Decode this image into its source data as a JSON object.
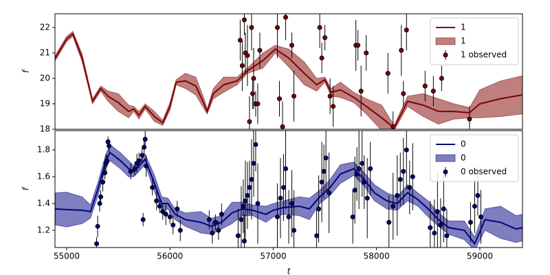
{
  "chart_data": [
    {
      "type": "line",
      "ylabel": "f",
      "xlim": [
        54887,
        59413
      ],
      "ylim": [
        18,
        22.54
      ],
      "yticks": [
        18,
        19,
        20,
        21,
        22
      ],
      "legend": "upper right",
      "series": [
        {
          "name": "1",
          "type": "line",
          "color": "#800000",
          "x": [
            54890,
            55000,
            55060,
            55150,
            55250,
            55330,
            55400,
            55500,
            55600,
            55650,
            55700,
            55760,
            55850,
            55930,
            56000,
            56060,
            56150,
            56250,
            56330,
            56360,
            56420,
            56520,
            56650,
            56750,
            56900,
            57020,
            57150,
            57300,
            57420,
            57500,
            57560,
            57650,
            57780,
            57900,
            58050,
            58170,
            58300,
            58450,
            58600,
            58750,
            58900,
            59000,
            59200,
            59413
          ],
          "values": [
            20.8,
            21.55,
            21.75,
            20.8,
            19.1,
            19.6,
            19.3,
            19.05,
            18.7,
            18.8,
            18.55,
            18.9,
            18.5,
            18.25,
            18.9,
            19.85,
            19.9,
            19.7,
            19.0,
            18.7,
            19.4,
            19.75,
            19.9,
            20.3,
            20.7,
            21.15,
            20.8,
            20.2,
            19.75,
            19.95,
            19.45,
            19.55,
            19.25,
            18.9,
            18.45,
            18.05,
            19.1,
            18.95,
            18.7,
            18.7,
            18.65,
            19.0,
            19.2,
            19.35
          ]
        },
        {
          "name": "1",
          "type": "band",
          "color": "#800000",
          "x": [
            54890,
            55000,
            55060,
            55150,
            55250,
            55330,
            55400,
            55500,
            55600,
            55650,
            55700,
            55760,
            55850,
            55930,
            56000,
            56060,
            56150,
            56250,
            56330,
            56360,
            56420,
            56520,
            56650,
            56750,
            56900,
            57020,
            57150,
            57300,
            57420,
            57500,
            57560,
            57650,
            57780,
            57900,
            58050,
            58170,
            58300,
            58450,
            58600,
            58750,
            58900,
            59000,
            59200,
            59413
          ],
          "lower": [
            20.7,
            21.45,
            21.65,
            20.65,
            19.0,
            19.5,
            19.1,
            18.7,
            18.45,
            18.7,
            18.4,
            18.8,
            18.3,
            18.15,
            18.75,
            19.75,
            19.6,
            19.35,
            18.8,
            18.6,
            19.2,
            19.45,
            19.75,
            20.2,
            20.4,
            21.0,
            20.45,
            19.75,
            19.5,
            19.85,
            19.3,
            19.25,
            19.05,
            18.6,
            17.95,
            17.95,
            18.9,
            18.5,
            18.2,
            18.4,
            18.45,
            18.45,
            18.5,
            18.6
          ],
          "upper": [
            20.9,
            21.65,
            21.85,
            20.95,
            19.2,
            19.7,
            19.5,
            19.4,
            18.95,
            18.9,
            18.7,
            19.0,
            18.7,
            18.35,
            19.05,
            19.95,
            20.2,
            20.05,
            19.2,
            18.8,
            19.6,
            20.05,
            20.05,
            20.4,
            21.0,
            21.3,
            21.15,
            20.65,
            20.0,
            20.05,
            19.6,
            19.85,
            19.45,
            19.2,
            18.95,
            18.15,
            19.3,
            19.4,
            19.2,
            19.0,
            18.85,
            19.55,
            19.9,
            20.1
          ]
        },
        {
          "name": "1 observed",
          "type": "scatter",
          "color": "#800000",
          "x": [
            56680,
            56700,
            56720,
            56730,
            56750,
            56770,
            56790,
            56800,
            56810,
            56830,
            56850,
            56870,
            57040,
            57060,
            57090,
            57120,
            57180,
            57200,
            57450,
            57470,
            57500,
            57550,
            57580,
            57800,
            57820,
            57850,
            57900,
            58110,
            58160,
            58240,
            58260,
            58290,
            58470,
            58550,
            58630,
            58900
          ],
          "values": [
            21.5,
            20.5,
            22.3,
            21.0,
            20.9,
            18.3,
            22.0,
            19.4,
            20.0,
            19.0,
            19.0,
            21.1,
            22.0,
            19.2,
            18.1,
            22.4,
            21.3,
            19.3,
            22.0,
            20.8,
            21.6,
            19.3,
            18.9,
            21.3,
            21.3,
            19.5,
            21.0,
            20.2,
            18.1,
            21.1,
            19.4,
            21.9,
            19.7,
            19.5,
            20.0,
            18.4
          ],
          "errors": [
            0.8,
            1.0,
            0.6,
            0.8,
            1.2,
            1.0,
            0.9,
            0.6,
            1.2,
            0.5,
            0.8,
            0.7,
            1.2,
            0.7,
            1.0,
            0.9,
            0.5,
            1.0,
            0.8,
            0.6,
            0.5,
            0.7,
            0.8,
            1.0,
            0.6,
            1.0,
            0.7,
            0.8,
            0.6,
            1.0,
            0.5,
            0.8,
            0.6,
            0.6,
            0.5,
            0.5
          ]
        }
      ]
    },
    {
      "type": "line",
      "ylabel": "f",
      "xlabel": "t",
      "xlim": [
        54887,
        59413
      ],
      "ylim": [
        1.072,
        1.944
      ],
      "xticks": [
        55000,
        56000,
        57000,
        58000,
        59000
      ],
      "yticks": [
        1.2,
        1.4,
        1.6,
        1.8
      ],
      "legend": "upper right",
      "series": [
        {
          "name": "0",
          "type": "line",
          "color": "#000080",
          "x": [
            54890,
            55000,
            55150,
            55230,
            55300,
            55380,
            55420,
            55520,
            55600,
            55650,
            55700,
            55760,
            55850,
            55920,
            55980,
            56050,
            56150,
            56300,
            56400,
            56500,
            56600,
            56700,
            56800,
            56930,
            57000,
            57100,
            57250,
            57350,
            57450,
            57550,
            57650,
            57780,
            57880,
            57980,
            58100,
            58200,
            58300,
            58400,
            58500,
            58600,
            58700,
            58850,
            58950,
            59050,
            59200,
            59350,
            59413
          ],
          "values": [
            1.36,
            1.355,
            1.35,
            1.34,
            1.5,
            1.72,
            1.78,
            1.72,
            1.66,
            1.64,
            1.68,
            1.73,
            1.55,
            1.4,
            1.4,
            1.32,
            1.28,
            1.26,
            1.23,
            1.26,
            1.33,
            1.36,
            1.35,
            1.32,
            1.35,
            1.37,
            1.38,
            1.36,
            1.45,
            1.52,
            1.62,
            1.66,
            1.58,
            1.48,
            1.42,
            1.4,
            1.48,
            1.43,
            1.36,
            1.28,
            1.22,
            1.2,
            1.1,
            1.28,
            1.26,
            1.21,
            1.22
          ]
        },
        {
          "name": "0",
          "type": "band",
          "color": "#000080",
          "x": [
            54890,
            55000,
            55150,
            55230,
            55300,
            55380,
            55420,
            55520,
            55600,
            55650,
            55700,
            55760,
            55850,
            55920,
            55980,
            56050,
            56150,
            56300,
            56400,
            56500,
            56600,
            56700,
            56800,
            56930,
            57000,
            57100,
            57250,
            57350,
            57450,
            57550,
            57650,
            57780,
            57880,
            57980,
            58100,
            58200,
            58300,
            58400,
            58500,
            58600,
            58700,
            58850,
            58950,
            59050,
            59200,
            59350,
            59413
          ],
          "lower": [
            1.24,
            1.225,
            1.25,
            1.29,
            1.45,
            1.67,
            1.72,
            1.66,
            1.6,
            1.6,
            1.64,
            1.69,
            1.49,
            1.35,
            1.36,
            1.28,
            1.23,
            1.18,
            1.17,
            1.21,
            1.25,
            1.31,
            1.31,
            1.26,
            1.3,
            1.32,
            1.31,
            1.28,
            1.4,
            1.46,
            1.55,
            1.61,
            1.53,
            1.42,
            1.36,
            1.35,
            1.42,
            1.38,
            1.3,
            1.23,
            1.17,
            1.13,
            1.05,
            1.2,
            1.14,
            1.11,
            1.12
          ],
          "upper": [
            1.48,
            1.485,
            1.45,
            1.39,
            1.55,
            1.77,
            1.84,
            1.78,
            1.72,
            1.68,
            1.72,
            1.77,
            1.61,
            1.45,
            1.44,
            1.36,
            1.33,
            1.34,
            1.29,
            1.31,
            1.41,
            1.41,
            1.39,
            1.38,
            1.4,
            1.42,
            1.45,
            1.44,
            1.5,
            1.58,
            1.69,
            1.71,
            1.63,
            1.54,
            1.48,
            1.45,
            1.54,
            1.48,
            1.42,
            1.33,
            1.27,
            1.27,
            1.15,
            1.36,
            1.38,
            1.31,
            1.32
          ]
        },
        {
          "name": "0 observed",
          "type": "scatter",
          "color": "#000080",
          "x": [
            55290,
            55300,
            55320,
            55330,
            55350,
            55370,
            55380,
            55390,
            55400,
            55410,
            55620,
            55660,
            55680,
            55700,
            55730,
            55750,
            55760,
            55770,
            55740,
            55830,
            55870,
            55900,
            55930,
            55960,
            56000,
            56030,
            56070,
            56100,
            56380,
            56410,
            56440,
            56470,
            56500,
            56660,
            56690,
            56710,
            56730,
            56750,
            56770,
            56790,
            56810,
            56830,
            56850,
            56720,
            57040,
            57070,
            57100,
            57120,
            57150,
            57180,
            57200,
            57420,
            57440,
            57470,
            57490,
            57510,
            57540,
            57770,
            57790,
            57810,
            57830,
            57860,
            57880,
            57910,
            57940,
            58120,
            58160,
            58200,
            58230,
            58260,
            58290,
            58320,
            58350,
            58520,
            58560,
            58590,
            58620,
            58650,
            58680,
            58910,
            58950,
            58980,
            59010
          ],
          "values": [
            1.1,
            1.23,
            1.4,
            1.45,
            1.56,
            1.63,
            1.7,
            1.72,
            1.86,
            1.83,
            1.64,
            1.66,
            1.7,
            1.72,
            1.76,
            1.82,
            1.88,
            1.68,
            1.28,
            1.52,
            1.42,
            1.38,
            1.34,
            1.32,
            1.3,
            1.24,
            1.36,
            1.2,
            1.28,
            1.18,
            1.26,
            1.2,
            1.32,
            1.16,
            1.28,
            1.38,
            1.42,
            1.46,
            1.52,
            1.58,
            1.7,
            1.84,
            1.4,
            1.12,
            1.3,
            1.44,
            1.52,
            1.66,
            1.3,
            1.4,
            1.2,
            1.16,
            1.36,
            1.56,
            1.64,
            1.74,
            1.48,
            1.3,
            1.5,
            1.62,
            1.66,
            1.7,
            1.56,
            1.44,
            1.66,
            1.26,
            1.38,
            1.46,
            1.58,
            1.64,
            1.8,
            1.52,
            1.6,
            1.22,
            1.18,
            1.34,
            1.24,
            1.36,
            1.16,
            1.26,
            1.38,
            1.46,
            1.3
          ],
          "errors": [
            0.05,
            0.08,
            0.06,
            0.05,
            0.07,
            0.05,
            0.06,
            0.05,
            0.04,
            0.05,
            0.06,
            0.05,
            0.07,
            0.06,
            0.05,
            0.06,
            0.06,
            0.08,
            0.05,
            0.06,
            0.07,
            0.05,
            0.06,
            0.08,
            0.05,
            0.07,
            0.06,
            0.08,
            0.07,
            0.08,
            0.06,
            0.07,
            0.08,
            0.2,
            0.25,
            0.2,
            0.3,
            0.25,
            0.2,
            0.3,
            0.25,
            0.2,
            0.3,
            0.2,
            0.25,
            0.3,
            0.25,
            0.3,
            0.2,
            0.25,
            0.3,
            0.2,
            0.25,
            0.3,
            0.2,
            0.25,
            0.3,
            0.2,
            0.25,
            0.2,
            0.3,
            0.25,
            0.2,
            0.3,
            0.2,
            0.2,
            0.25,
            0.3,
            0.2,
            0.25,
            0.3,
            0.2,
            0.25,
            0.2,
            0.25,
            0.3,
            0.2,
            0.25,
            0.2,
            0.15,
            0.2,
            0.15,
            0.2
          ]
        }
      ]
    }
  ]
}
